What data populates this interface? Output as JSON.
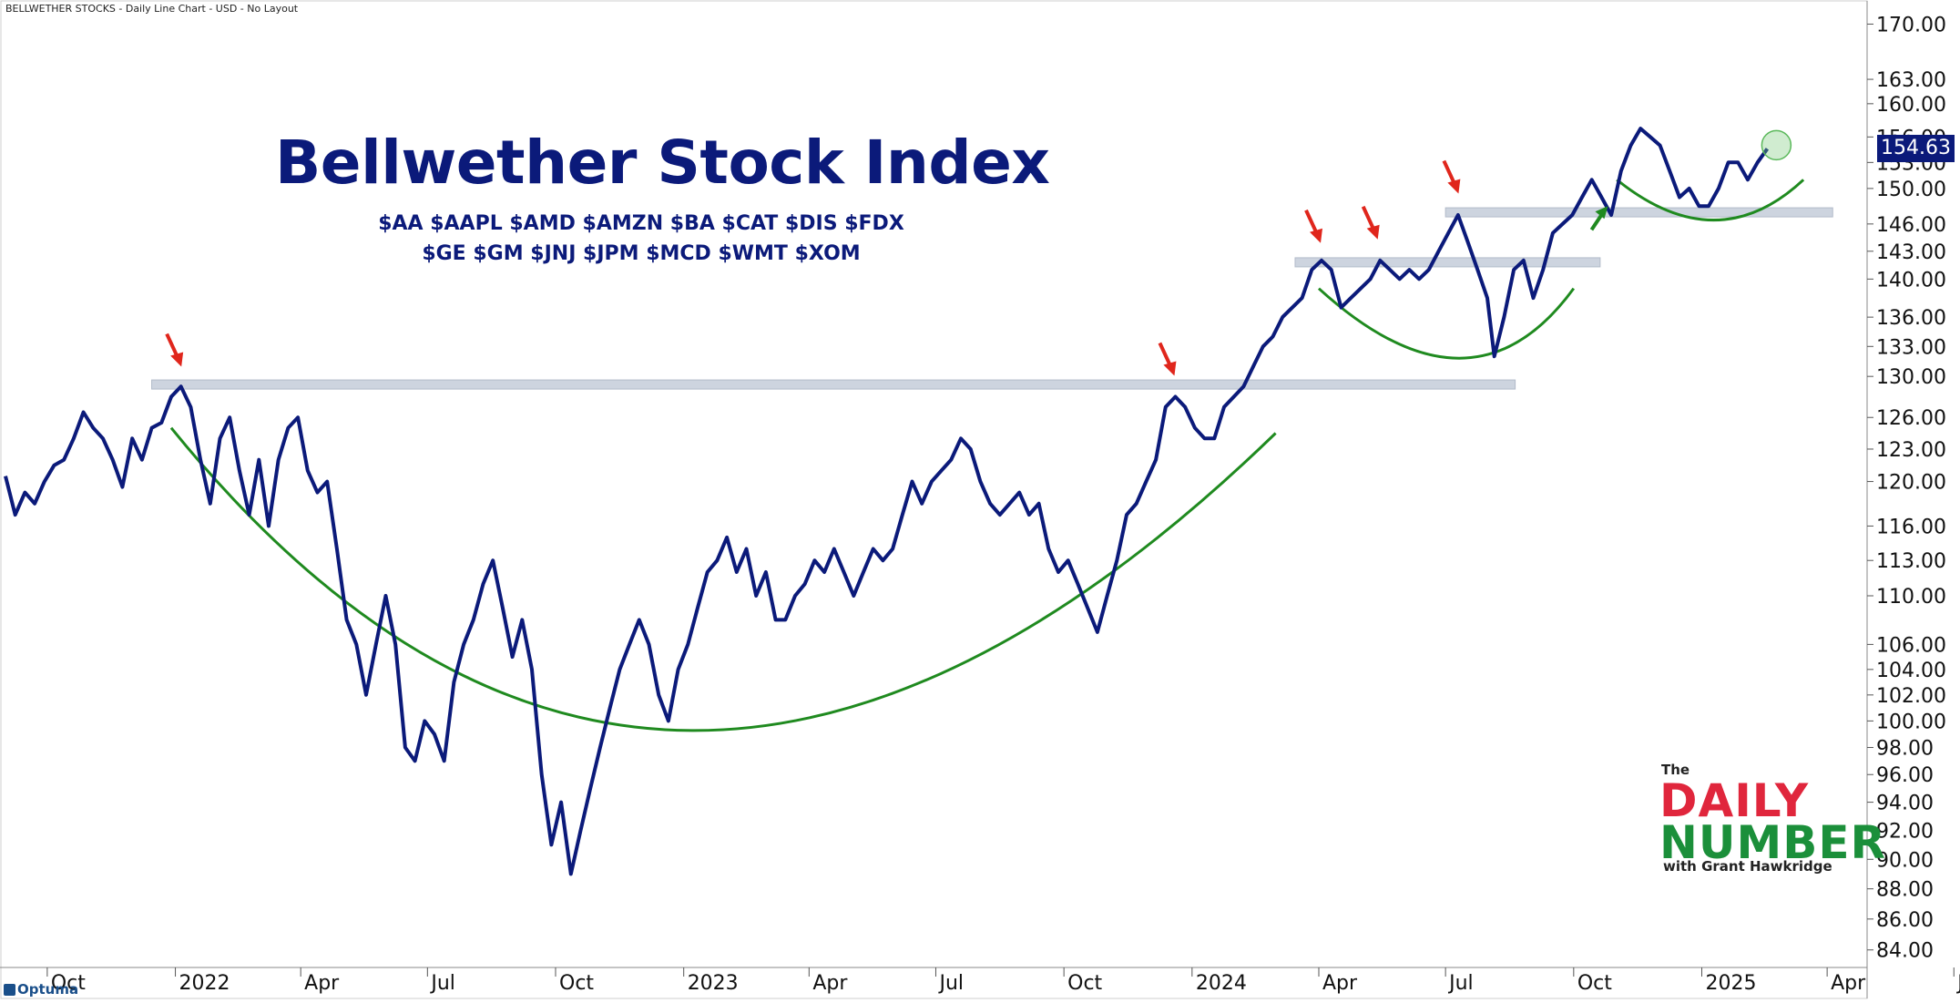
{
  "header": {
    "text": "BELLWETHER STOCKS - Daily Line Chart - USD - No Layout"
  },
  "title": "Bellwether Stock Index",
  "tickers_line1": "$AA $AAPL $AMD $AMZN $BA $CAT $DIS $FDX",
  "tickers_line2": "$GE $GM $JNJ $JPM $MCD $WMT $XOM",
  "logo": {
    "the": "The",
    "daily": "DAILY",
    "number": "NUMBER",
    "with": "with Grant Hawkridge"
  },
  "footer": {
    "brand": "Optuma"
  },
  "last_price": "154.63",
  "colors": {
    "line": "#0b1a7a",
    "arc": "#1f8a1f",
    "resistance": "#c8d0dc",
    "arrow_red": "#e0261c",
    "arrow_green": "#1f8a1f",
    "badge": "#0b1a7a"
  },
  "chart_data": {
    "type": "line",
    "scale": "log",
    "ylim": [
      83,
      171
    ],
    "yticks": [
      84,
      86,
      88,
      90,
      92,
      94,
      96,
      98,
      100,
      102,
      104,
      106,
      110,
      113,
      116,
      120,
      123,
      126,
      130,
      133,
      136,
      140,
      143,
      146,
      150,
      153,
      156,
      160,
      163,
      170
    ],
    "ytick_labels": [
      "84.00",
      "86.00",
      "88.00",
      "90.00",
      "92.00",
      "94.00",
      "96.00",
      "98.00",
      "100.00",
      "102.00",
      "104.00",
      "106.00",
      "110.00",
      "113.00",
      "116.00",
      "120.00",
      "123.00",
      "126.00",
      "130.00",
      "133.00",
      "136.00",
      "140.00",
      "143.00",
      "146.00",
      "150.00",
      "153.00",
      "156.00",
      "160.00",
      "163.00",
      "170.00"
    ],
    "xlim": [
      "2021-09-01",
      "2025-05-01"
    ],
    "xticks": [
      {
        "date": "2021-10-01",
        "label": "Oct"
      },
      {
        "date": "2022-01-01",
        "label": "2022"
      },
      {
        "date": "2022-04-01",
        "label": "Apr"
      },
      {
        "date": "2022-07-01",
        "label": "Jul"
      },
      {
        "date": "2022-10-01",
        "label": "Oct"
      },
      {
        "date": "2023-01-01",
        "label": "2023"
      },
      {
        "date": "2023-04-01",
        "label": "Apr"
      },
      {
        "date": "2023-07-01",
        "label": "Jul"
      },
      {
        "date": "2023-10-01",
        "label": "Oct"
      },
      {
        "date": "2024-01-01",
        "label": "2024"
      },
      {
        "date": "2024-04-01",
        "label": "Apr"
      },
      {
        "date": "2024-07-01",
        "label": "Jul"
      },
      {
        "date": "2024-10-01",
        "label": "Oct"
      },
      {
        "date": "2025-01-01",
        "label": "2025"
      },
      {
        "date": "2025-04-01",
        "label": "Apr"
      },
      {
        "date": "2025-07-01",
        "label": "J"
      }
    ],
    "series": [
      {
        "points": [
          [
            "2021-09-01",
            120.5
          ],
          [
            "2021-09-08",
            117
          ],
          [
            "2021-09-15",
            119
          ],
          [
            "2021-09-22",
            118
          ],
          [
            "2021-09-29",
            120
          ],
          [
            "2021-10-06",
            121.5
          ],
          [
            "2021-10-13",
            122
          ],
          [
            "2021-10-20",
            124
          ],
          [
            "2021-10-27",
            126.5
          ],
          [
            "2021-11-03",
            125
          ],
          [
            "2021-11-10",
            124
          ],
          [
            "2021-11-17",
            122
          ],
          [
            "2021-11-24",
            119.5
          ],
          [
            "2021-12-01",
            124
          ],
          [
            "2021-12-08",
            122
          ],
          [
            "2021-12-15",
            125
          ],
          [
            "2021-12-22",
            125.5
          ],
          [
            "2021-12-29",
            128
          ],
          [
            "2022-01-05",
            129
          ],
          [
            "2022-01-12",
            127
          ],
          [
            "2022-01-19",
            122
          ],
          [
            "2022-01-26",
            118
          ],
          [
            "2022-02-02",
            124
          ],
          [
            "2022-02-09",
            126
          ],
          [
            "2022-02-16",
            121
          ],
          [
            "2022-02-23",
            117
          ],
          [
            "2022-03-02",
            122
          ],
          [
            "2022-03-09",
            116
          ],
          [
            "2022-03-16",
            122
          ],
          [
            "2022-03-23",
            125
          ],
          [
            "2022-03-30",
            126
          ],
          [
            "2022-04-06",
            121
          ],
          [
            "2022-04-13",
            119
          ],
          [
            "2022-04-20",
            120
          ],
          [
            "2022-04-27",
            114
          ],
          [
            "2022-05-04",
            108
          ],
          [
            "2022-05-11",
            106
          ],
          [
            "2022-05-18",
            102
          ],
          [
            "2022-05-25",
            106
          ],
          [
            "2022-06-01",
            110
          ],
          [
            "2022-06-08",
            106
          ],
          [
            "2022-06-15",
            98
          ],
          [
            "2022-06-22",
            97
          ],
          [
            "2022-06-29",
            100
          ],
          [
            "2022-07-06",
            99
          ],
          [
            "2022-07-13",
            97
          ],
          [
            "2022-07-20",
            103
          ],
          [
            "2022-07-27",
            106
          ],
          [
            "2022-08-03",
            108
          ],
          [
            "2022-08-10",
            111
          ],
          [
            "2022-08-17",
            113
          ],
          [
            "2022-08-24",
            109
          ],
          [
            "2022-08-31",
            105
          ],
          [
            "2022-09-07",
            108
          ],
          [
            "2022-09-14",
            104
          ],
          [
            "2022-09-21",
            96
          ],
          [
            "2022-09-28",
            91
          ],
          [
            "2022-10-05",
            94
          ],
          [
            "2022-10-12",
            89
          ],
          [
            "2022-10-19",
            92
          ],
          [
            "2022-10-26",
            95
          ],
          [
            "2022-11-02",
            98
          ],
          [
            "2022-11-09",
            101
          ],
          [
            "2022-11-16",
            104
          ],
          [
            "2022-11-23",
            106
          ],
          [
            "2022-11-30",
            108
          ],
          [
            "2022-12-07",
            106
          ],
          [
            "2022-12-14",
            102
          ],
          [
            "2022-12-21",
            100
          ],
          [
            "2022-12-28",
            104
          ],
          [
            "2023-01-04",
            106
          ],
          [
            "2023-01-11",
            109
          ],
          [
            "2023-01-18",
            112
          ],
          [
            "2023-01-25",
            113
          ],
          [
            "2023-02-01",
            115
          ],
          [
            "2023-02-08",
            112
          ],
          [
            "2023-02-15",
            114
          ],
          [
            "2023-02-22",
            110
          ],
          [
            "2023-03-01",
            112
          ],
          [
            "2023-03-08",
            108
          ],
          [
            "2023-03-15",
            108
          ],
          [
            "2023-03-22",
            110
          ],
          [
            "2023-03-29",
            111
          ],
          [
            "2023-04-05",
            113
          ],
          [
            "2023-04-12",
            112
          ],
          [
            "2023-04-19",
            114
          ],
          [
            "2023-04-26",
            112
          ],
          [
            "2023-05-03",
            110
          ],
          [
            "2023-05-10",
            112
          ],
          [
            "2023-05-17",
            114
          ],
          [
            "2023-05-24",
            113
          ],
          [
            "2023-05-31",
            114
          ],
          [
            "2023-06-07",
            117
          ],
          [
            "2023-06-14",
            120
          ],
          [
            "2023-06-21",
            118
          ],
          [
            "2023-06-28",
            120
          ],
          [
            "2023-07-05",
            121
          ],
          [
            "2023-07-12",
            122
          ],
          [
            "2023-07-19",
            124
          ],
          [
            "2023-07-26",
            123
          ],
          [
            "2023-08-02",
            120
          ],
          [
            "2023-08-09",
            118
          ],
          [
            "2023-08-16",
            117
          ],
          [
            "2023-08-23",
            118
          ],
          [
            "2023-08-30",
            119
          ],
          [
            "2023-09-06",
            117
          ],
          [
            "2023-09-13",
            118
          ],
          [
            "2023-09-20",
            114
          ],
          [
            "2023-09-27",
            112
          ],
          [
            "2023-10-04",
            113
          ],
          [
            "2023-10-11",
            111
          ],
          [
            "2023-10-18",
            109
          ],
          [
            "2023-10-25",
            107
          ],
          [
            "2023-11-01",
            110
          ],
          [
            "2023-11-08",
            113
          ],
          [
            "2023-11-15",
            117
          ],
          [
            "2023-11-22",
            118
          ],
          [
            "2023-11-29",
            120
          ],
          [
            "2023-12-06",
            122
          ],
          [
            "2023-12-13",
            127
          ],
          [
            "2023-12-20",
            128
          ],
          [
            "2023-12-27",
            127
          ],
          [
            "2024-01-03",
            125
          ],
          [
            "2024-01-10",
            124
          ],
          [
            "2024-01-17",
            124
          ],
          [
            "2024-01-24",
            127
          ],
          [
            "2024-01-31",
            128
          ],
          [
            "2024-02-07",
            129
          ],
          [
            "2024-02-14",
            131
          ],
          [
            "2024-02-21",
            133
          ],
          [
            "2024-02-28",
            134
          ],
          [
            "2024-03-06",
            136
          ],
          [
            "2024-03-13",
            137
          ],
          [
            "2024-03-20",
            138
          ],
          [
            "2024-03-27",
            141
          ],
          [
            "2024-04-03",
            142
          ],
          [
            "2024-04-10",
            141
          ],
          [
            "2024-04-17",
            137
          ],
          [
            "2024-04-24",
            138
          ],
          [
            "2024-05-01",
            139
          ],
          [
            "2024-05-08",
            140
          ],
          [
            "2024-05-15",
            142
          ],
          [
            "2024-05-22",
            141
          ],
          [
            "2024-05-29",
            140
          ],
          [
            "2024-06-05",
            141
          ],
          [
            "2024-06-12",
            140
          ],
          [
            "2024-06-19",
            141
          ],
          [
            "2024-06-26",
            143
          ],
          [
            "2024-07-03",
            145
          ],
          [
            "2024-07-10",
            147
          ],
          [
            "2024-07-17",
            144
          ],
          [
            "2024-07-24",
            141
          ],
          [
            "2024-07-31",
            138
          ],
          [
            "2024-08-05",
            132
          ],
          [
            "2024-08-12",
            136
          ],
          [
            "2024-08-19",
            141
          ],
          [
            "2024-08-26",
            142
          ],
          [
            "2024-09-02",
            138
          ],
          [
            "2024-09-09",
            141
          ],
          [
            "2024-09-16",
            145
          ],
          [
            "2024-09-23",
            146
          ],
          [
            "2024-09-30",
            147
          ],
          [
            "2024-10-07",
            149
          ],
          [
            "2024-10-14",
            151
          ],
          [
            "2024-10-21",
            149
          ],
          [
            "2024-10-28",
            147
          ],
          [
            "2024-11-04",
            152
          ],
          [
            "2024-11-11",
            155
          ],
          [
            "2024-11-18",
            157
          ],
          [
            "2024-11-25",
            156
          ],
          [
            "2024-12-02",
            155
          ],
          [
            "2024-12-09",
            152
          ],
          [
            "2024-12-16",
            149
          ],
          [
            "2024-12-23",
            150
          ],
          [
            "2024-12-30",
            148
          ],
          [
            "2025-01-06",
            148
          ],
          [
            "2025-01-13",
            150
          ],
          [
            "2025-01-20",
            153
          ],
          [
            "2025-01-27",
            153
          ],
          [
            "2025-02-03",
            151
          ],
          [
            "2025-02-10",
            153
          ],
          [
            "2025-02-17",
            154.6
          ]
        ]
      }
    ],
    "resistance_levels": [
      {
        "y": 129.2,
        "start": "2021-12-15",
        "end": "2024-08-20"
      },
      {
        "y": 141.8,
        "start": "2024-03-15",
        "end": "2024-10-20"
      },
      {
        "y": 147.3,
        "start": "2024-07-01",
        "end": "2025-04-05"
      }
    ],
    "arrows": [
      {
        "date": "2022-01-04",
        "value": 130.6,
        "color": "red"
      },
      {
        "date": "2023-12-18",
        "value": 129.7,
        "color": "red"
      },
      {
        "date": "2024-04-01",
        "value": 143.5,
        "color": "red"
      },
      {
        "date": "2024-05-12",
        "value": 143.9,
        "color": "red"
      },
      {
        "date": "2024-07-09",
        "value": 149,
        "color": "red"
      },
      {
        "date": "2024-10-23",
        "value": 148,
        "color": "green"
      }
    ]
  }
}
